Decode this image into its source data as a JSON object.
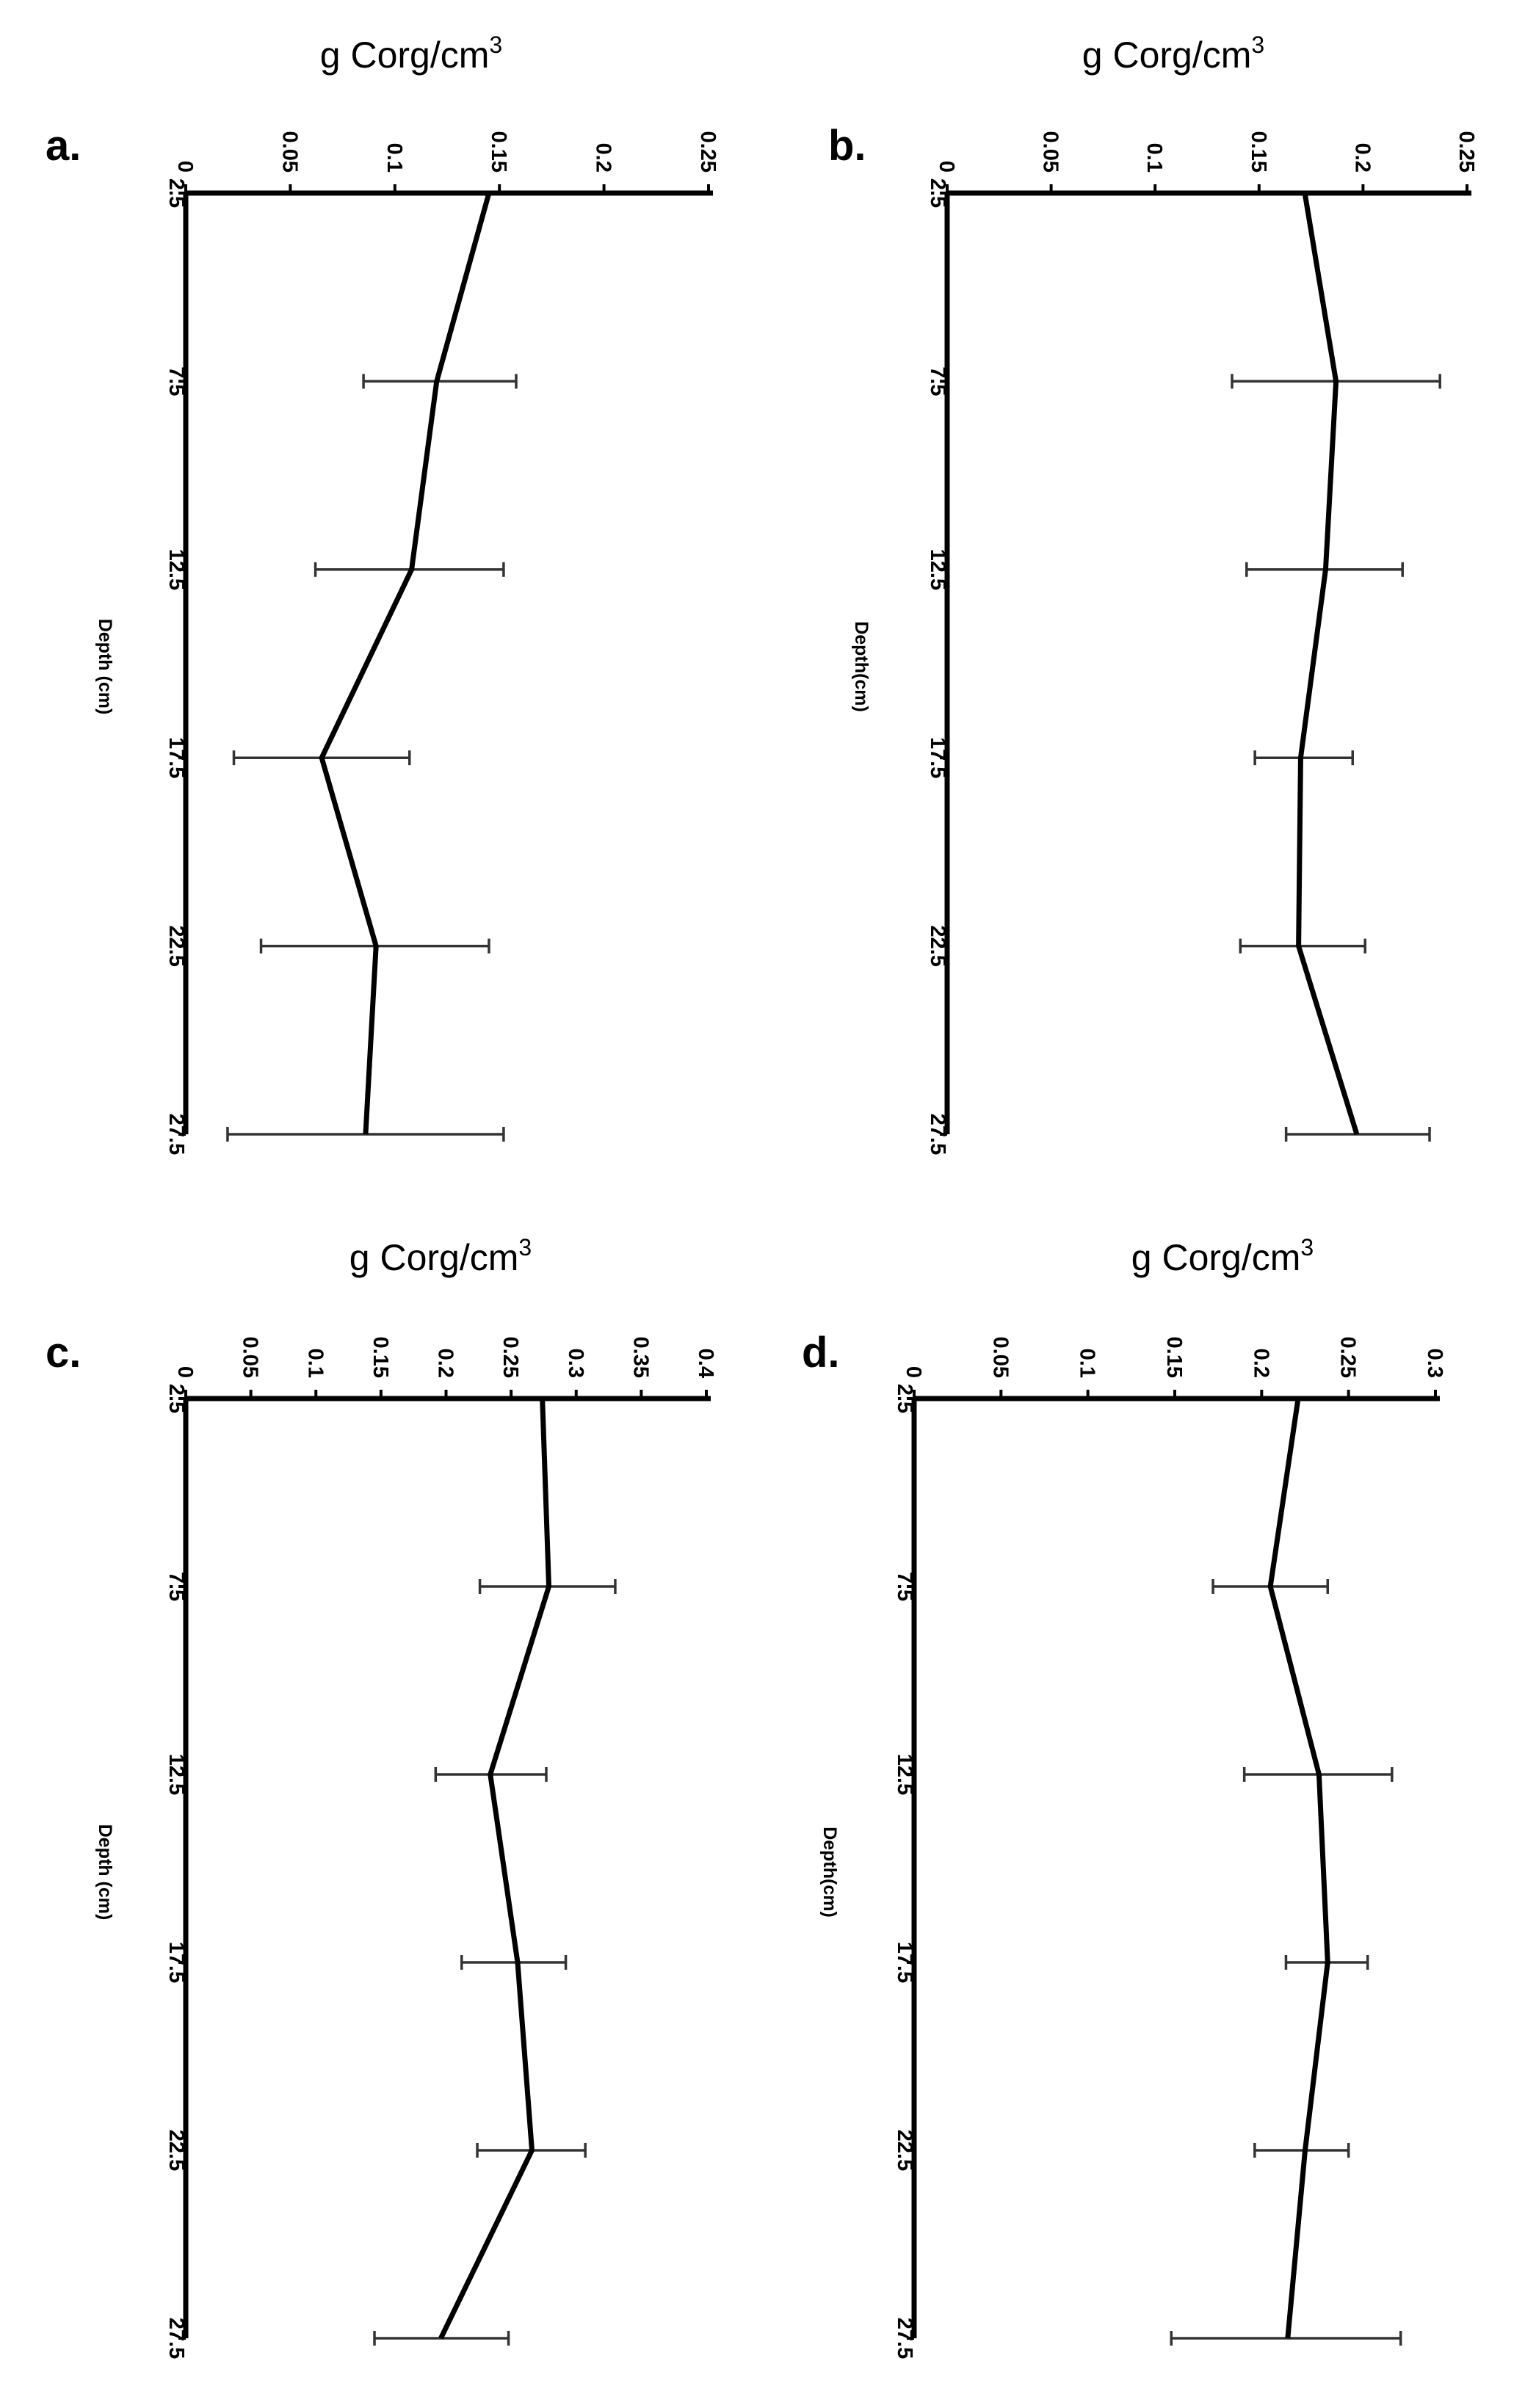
{
  "chart_data": [
    {
      "type": "line",
      "panel": "a.",
      "title": "",
      "xlabel": "g Corg/cm",
      "xlabel_sup": "3",
      "ylabel": "Depth (cm)",
      "xlim": [
        0,
        0.25
      ],
      "x_ticks": [
        "0",
        "0.05",
        "0.1",
        "0.15",
        "0.2",
        "0.25"
      ],
      "x_tick_values": [
        0,
        0.05,
        0.1,
        0.15,
        0.2,
        0.25
      ],
      "depths": [
        2.5,
        7.5,
        12.5,
        17.5,
        22.5,
        27.5
      ],
      "depth_labels": [
        "2.5",
        "7.5",
        "12.5",
        "17.5",
        "22.5",
        "27.5"
      ],
      "values": [
        0.145,
        0.12,
        0.108,
        0.065,
        0.091,
        0.086
      ],
      "errors": [
        null,
        [
          0.085,
          0.158
        ],
        [
          0.062,
          0.152
        ],
        [
          0.023,
          0.107
        ],
        [
          0.036,
          0.145
        ],
        [
          0.02,
          0.152
        ]
      ]
    },
    {
      "type": "line",
      "panel": "b.",
      "title": "",
      "xlabel": "g Corg/cm",
      "xlabel_sup": "3",
      "ylabel": "Depth(cm)",
      "xlim": [
        0,
        0.25
      ],
      "x_ticks": [
        "0",
        "0.05",
        "0.1",
        "0.15",
        "0.2",
        "0.25"
      ],
      "x_tick_values": [
        0,
        0.05,
        0.1,
        0.15,
        0.2,
        0.25
      ],
      "depths": [
        2.5,
        7.5,
        12.5,
        17.5,
        22.5,
        27.5
      ],
      "depth_labels": [
        "2.5",
        "7.5",
        "12.5",
        "17.5",
        "22.5",
        "27.5"
      ],
      "values": [
        0.172,
        0.187,
        0.182,
        0.17,
        0.169,
        0.197
      ],
      "errors": [
        null,
        [
          0.137,
          0.237
        ],
        [
          0.144,
          0.219
        ],
        [
          0.148,
          0.195
        ],
        [
          0.141,
          0.201
        ],
        [
          0.163,
          0.232
        ]
      ]
    },
    {
      "type": "line",
      "panel": "c.",
      "title": "",
      "xlabel": "g Corg/cm",
      "xlabel_sup": "3",
      "ylabel": "Depth (cm)",
      "xlim": [
        0,
        0.4
      ],
      "x_ticks": [
        "0",
        "0.05",
        "0.1",
        "0.15",
        "0.2",
        "0.25",
        "0.3",
        "0.35",
        "0.4"
      ],
      "x_tick_values": [
        0,
        0.05,
        0.1,
        0.15,
        0.2,
        0.25,
        0.3,
        0.35,
        0.4
      ],
      "depths": [
        2.5,
        7.5,
        12.5,
        17.5,
        22.5,
        27.5
      ],
      "depth_labels": [
        "2.5",
        "7.5",
        "12.5",
        "17.5",
        "22.5",
        "27.5"
      ],
      "values": [
        0.274,
        0.279,
        0.234,
        0.255,
        0.266,
        0.196
      ],
      "errors": [
        null,
        [
          0.226,
          0.33
        ],
        [
          0.192,
          0.277
        ],
        [
          0.212,
          0.292
        ],
        [
          0.224,
          0.307
        ],
        [
          0.145,
          0.248
        ]
      ]
    },
    {
      "type": "line",
      "panel": "d.",
      "title": "",
      "xlabel": "g Corg/cm",
      "xlabel_sup": "3",
      "ylabel": "Depth(cm)",
      "xlim": [
        0,
        0.3
      ],
      "x_ticks": [
        "0",
        "0.05",
        "0.1",
        "0.15",
        "0.2",
        "0.25",
        "0.3"
      ],
      "x_tick_values": [
        0,
        0.05,
        0.1,
        0.15,
        0.2,
        0.25,
        0.3
      ],
      "depths": [
        2.5,
        7.5,
        12.5,
        17.5,
        22.5,
        27.5
      ],
      "depth_labels": [
        "2.5",
        "7.5",
        "12.5",
        "17.5",
        "22.5",
        "27.5"
      ],
      "values": [
        0.221,
        0.205,
        0.233,
        0.238,
        0.225,
        0.215
      ],
      "errors": [
        null,
        [
          0.172,
          0.238
        ],
        [
          0.19,
          0.275
        ],
        [
          0.214,
          0.261
        ],
        [
          0.196,
          0.25
        ],
        [
          0.148,
          0.28
        ]
      ]
    }
  ]
}
